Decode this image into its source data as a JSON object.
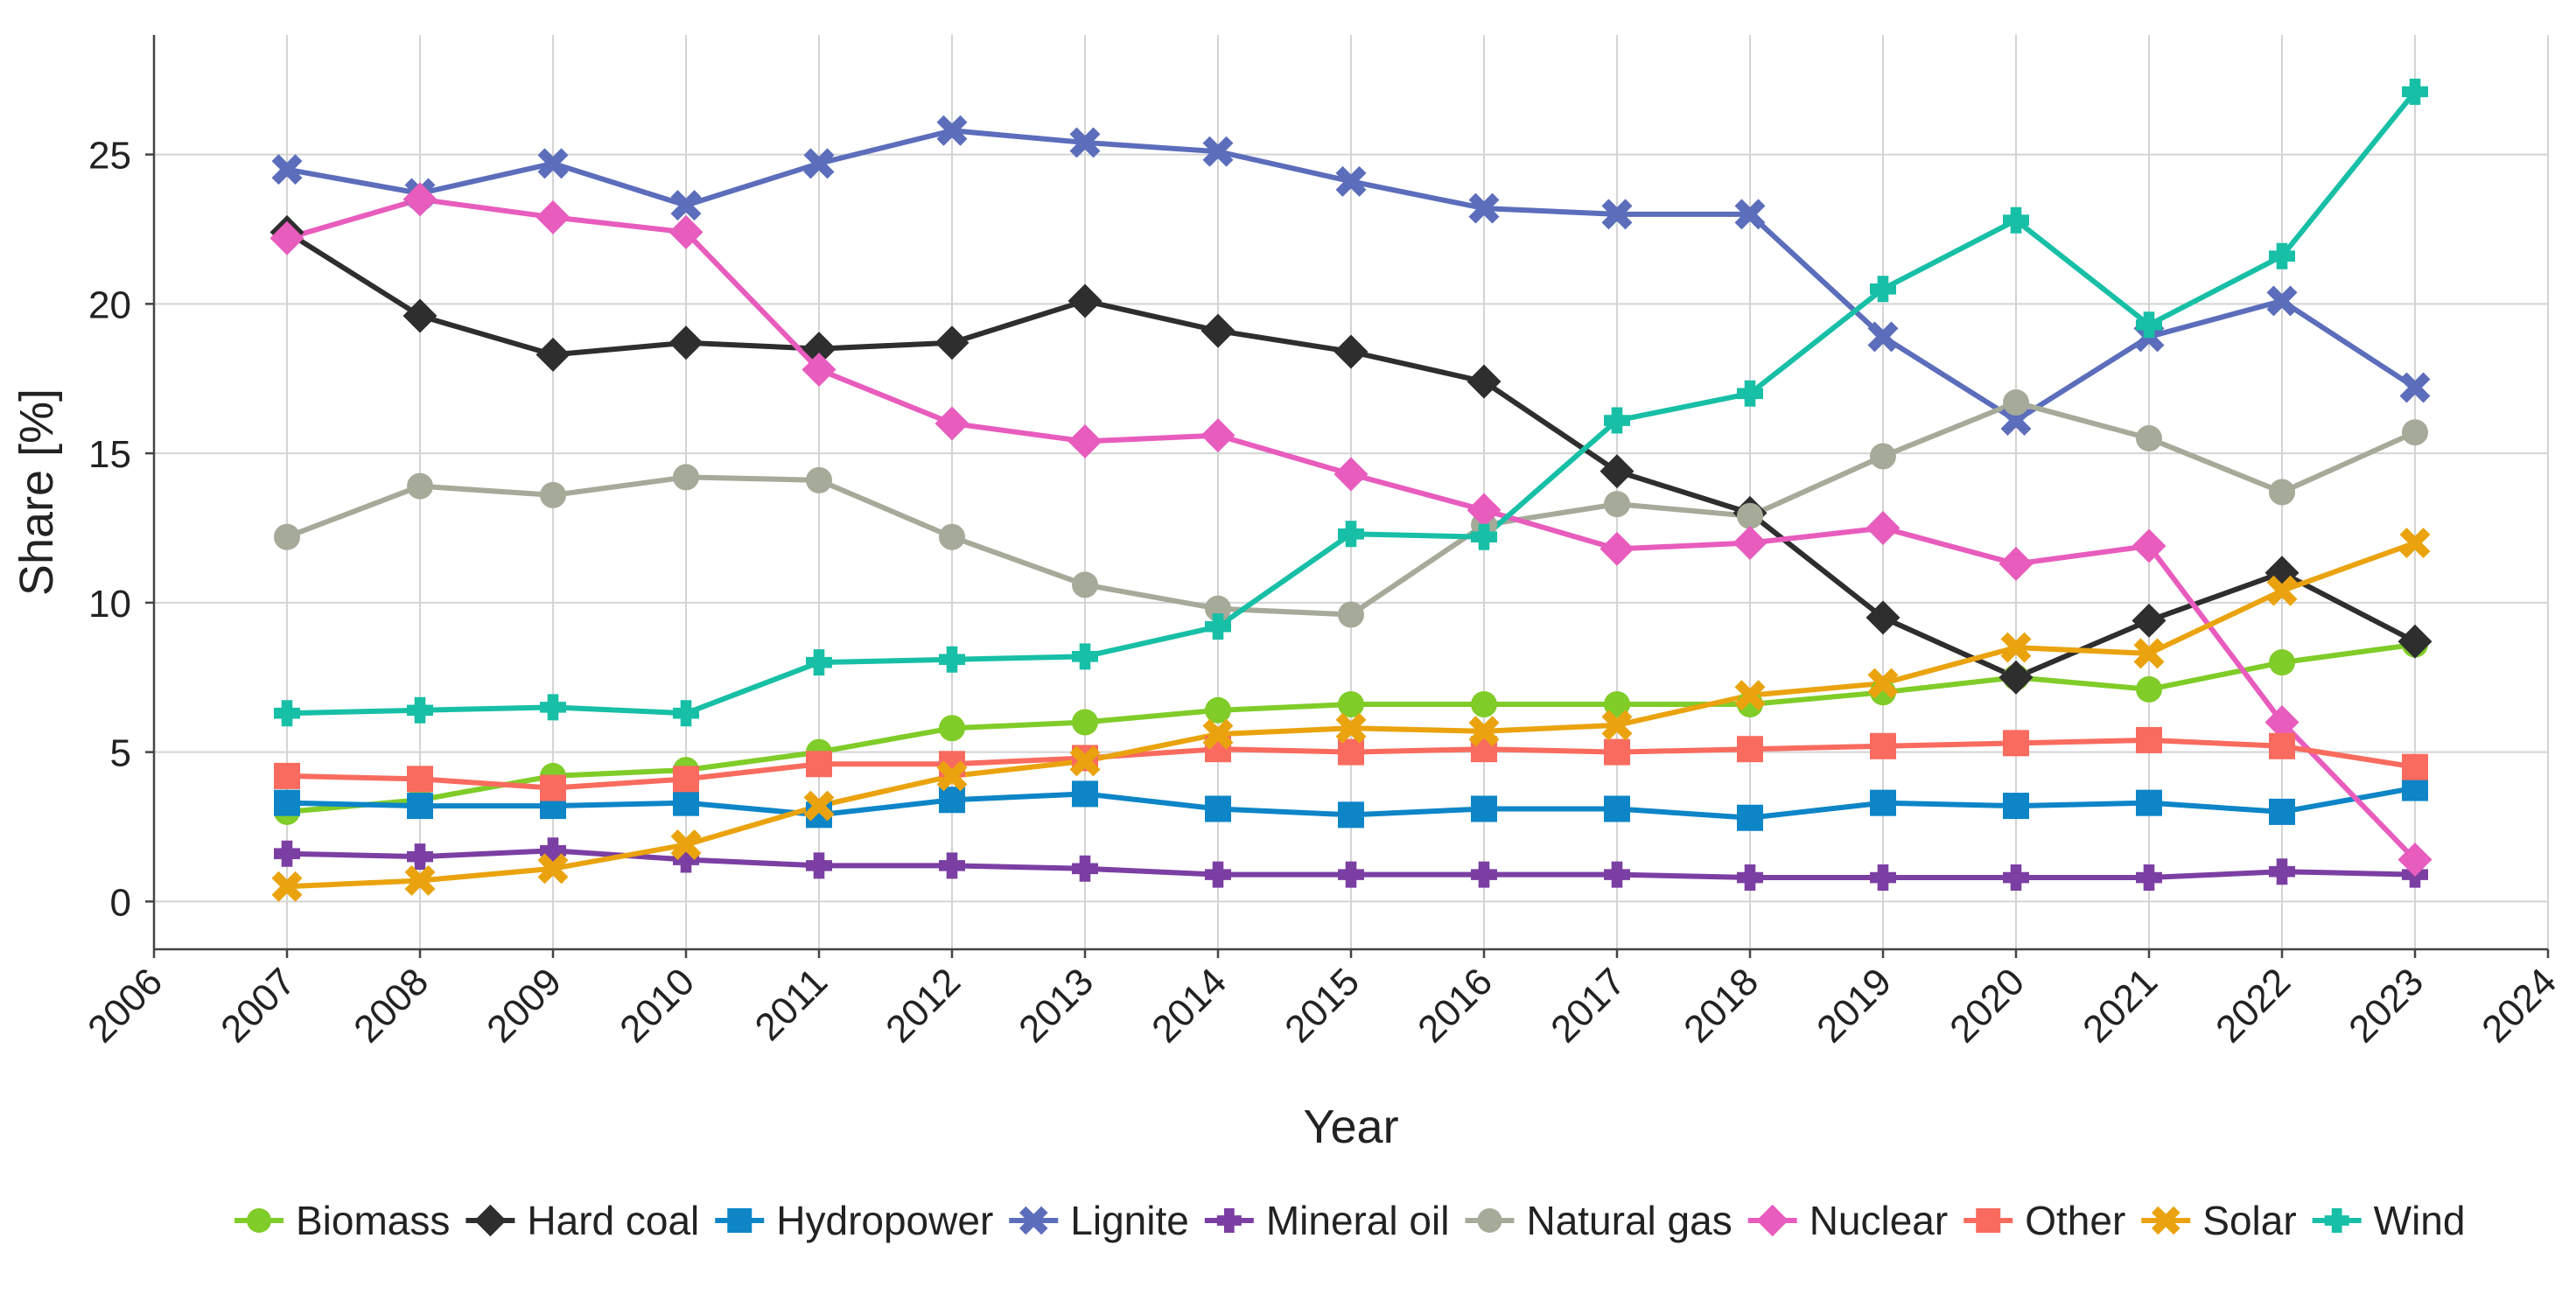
{
  "chart_data": {
    "type": "line",
    "title": "",
    "xlabel": "Year",
    "ylabel": "Share [%]",
    "xlim": [
      2006,
      2024
    ],
    "ylim": [
      -1.6,
      29
    ],
    "x_ticks": [
      2006,
      2007,
      2008,
      2009,
      2010,
      2011,
      2012,
      2013,
      2014,
      2015,
      2016,
      2017,
      2018,
      2019,
      2020,
      2021,
      2022,
      2023,
      2024
    ],
    "y_ticks": [
      0,
      5,
      10,
      15,
      20,
      25
    ],
    "grid": true,
    "legend_position": "bottom",
    "x": [
      2007,
      2008,
      2009,
      2010,
      2011,
      2012,
      2013,
      2014,
      2015,
      2016,
      2017,
      2018,
      2019,
      2020,
      2021,
      2022,
      2023
    ],
    "series": [
      {
        "name": "Biomass",
        "color": "#80cc28",
        "marker": "circle",
        "values": [
          3.0,
          3.4,
          4.2,
          4.4,
          5.0,
          5.8,
          6.0,
          6.4,
          6.6,
          6.6,
          6.6,
          6.6,
          7.0,
          7.5,
          7.1,
          8.0,
          8.6
        ]
      },
      {
        "name": "Hard coal",
        "color": "#2e2e2e",
        "marker": "diamond",
        "values": [
          22.4,
          19.6,
          18.3,
          18.7,
          18.5,
          18.7,
          20.1,
          19.1,
          18.4,
          17.4,
          14.4,
          13.0,
          9.5,
          7.5,
          9.4,
          11.0,
          8.7
        ]
      },
      {
        "name": "Hydropower",
        "color": "#0d85c7",
        "marker": "square",
        "values": [
          3.3,
          3.2,
          3.2,
          3.3,
          2.9,
          3.4,
          3.6,
          3.1,
          2.9,
          3.1,
          3.1,
          2.8,
          3.3,
          3.2,
          3.3,
          3.0,
          3.8
        ]
      },
      {
        "name": "Lignite",
        "color": "#5b6dbb",
        "marker": "x",
        "values": [
          24.5,
          23.7,
          24.7,
          23.3,
          24.7,
          25.8,
          25.4,
          25.1,
          24.1,
          23.2,
          23.0,
          23.0,
          18.9,
          16.1,
          18.9,
          20.1,
          17.2
        ]
      },
      {
        "name": "Mineral oil",
        "color": "#7b3fa3",
        "marker": "plus",
        "values": [
          1.6,
          1.5,
          1.7,
          1.4,
          1.2,
          1.2,
          1.1,
          0.9,
          0.9,
          0.9,
          0.9,
          0.8,
          0.8,
          0.8,
          0.8,
          1.0,
          0.9
        ]
      },
      {
        "name": "Natural gas",
        "color": "#a5aa99",
        "marker": "circle",
        "values": [
          12.2,
          13.9,
          13.6,
          14.2,
          14.1,
          12.2,
          10.6,
          9.8,
          9.6,
          12.6,
          13.3,
          12.9,
          14.9,
          16.7,
          15.5,
          13.7,
          15.7
        ]
      },
      {
        "name": "Nuclear",
        "color": "#e85cbd",
        "marker": "diamond",
        "values": [
          22.2,
          23.5,
          22.9,
          22.4,
          17.8,
          16.0,
          15.4,
          15.6,
          14.3,
          13.1,
          11.8,
          12.0,
          12.5,
          11.3,
          11.9,
          6.0,
          1.4
        ]
      },
      {
        "name": "Other",
        "color": "#f96b5e",
        "marker": "square",
        "values": [
          4.2,
          4.1,
          3.8,
          4.1,
          4.6,
          4.6,
          4.8,
          5.1,
          5.0,
          5.1,
          5.0,
          5.1,
          5.2,
          5.3,
          5.4,
          5.2,
          4.5
        ]
      },
      {
        "name": "Solar",
        "color": "#eaa30e",
        "marker": "x",
        "values": [
          0.5,
          0.7,
          1.1,
          1.9,
          3.2,
          4.2,
          4.7,
          5.6,
          5.8,
          5.7,
          5.9,
          6.9,
          7.3,
          8.5,
          8.3,
          10.4,
          12.0
        ]
      },
      {
        "name": "Wind",
        "color": "#17bfa6",
        "marker": "plus",
        "values": [
          6.3,
          6.4,
          6.5,
          6.3,
          8.0,
          8.1,
          8.2,
          9.2,
          12.3,
          12.2,
          16.1,
          17.0,
          20.5,
          22.8,
          19.3,
          21.6,
          27.1
        ]
      }
    ]
  }
}
